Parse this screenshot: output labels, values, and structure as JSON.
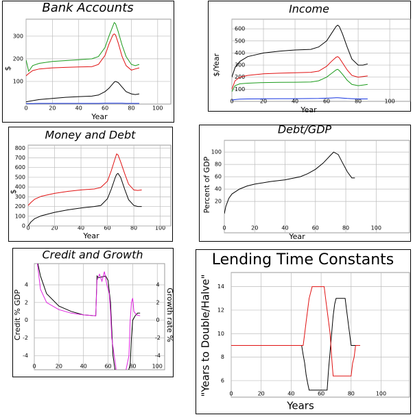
{
  "chart_data": [
    {
      "type": "line",
      "title": "Bank Accounts",
      "xlabel": "Year",
      "ylabel": "$",
      "x": [
        0,
        2,
        5,
        10,
        20,
        30,
        40,
        50,
        55,
        60,
        63,
        66,
        67,
        68,
        70,
        73,
        76,
        80,
        83,
        86
      ],
      "xlim": [
        0,
        110
      ],
      "ylim": [
        0,
        375
      ],
      "xticks": [
        0,
        20,
        40,
        60,
        80,
        100
      ],
      "yticks": [
        100,
        200,
        300
      ],
      "grid": true,
      "series": [
        {
          "color": "#1a9a1a",
          "values": [
            195,
            145,
            170,
            180,
            188,
            192,
            196,
            200,
            210,
            250,
            300,
            345,
            360,
            355,
            320,
            260,
            210,
            175,
            170,
            175
          ]
        },
        {
          "color": "#e01010",
          "values": [
            125,
            135,
            148,
            155,
            160,
            162,
            164,
            165,
            175,
            215,
            265,
            305,
            310,
            305,
            270,
            210,
            170,
            150,
            155,
            160
          ]
        },
        {
          "color": "#000000",
          "values": [
            10,
            12,
            15,
            20,
            25,
            30,
            33,
            35,
            40,
            55,
            70,
            90,
            97,
            100,
            95,
            75,
            55,
            45,
            42,
            45
          ]
        },
        {
          "color": "#1030e0",
          "values": [
            2,
            2,
            2,
            3,
            3,
            3,
            3,
            3,
            3,
            4,
            4,
            4,
            4,
            4,
            4,
            4,
            3,
            3,
            3,
            3
          ]
        }
      ]
    },
    {
      "type": "line",
      "title": "Income",
      "xlabel": "Year",
      "ylabel": "$/Year",
      "x": [
        0,
        2,
        5,
        10,
        20,
        30,
        40,
        50,
        55,
        60,
        63,
        66,
        67,
        68,
        70,
        73,
        76,
        80,
        83,
        86
      ],
      "xlim": [
        0,
        113
      ],
      "ylim": [
        0,
        680
      ],
      "xticks": [
        0,
        20,
        40,
        60,
        80,
        100
      ],
      "yticks": [
        100,
        200,
        300,
        400,
        500,
        600
      ],
      "grid": true,
      "series": [
        {
          "color": "#000000",
          "values": [
            200,
            280,
            330,
            370,
            400,
            415,
            425,
            430,
            450,
            500,
            560,
            620,
            630,
            620,
            560,
            450,
            350,
            300,
            300,
            310
          ]
        },
        {
          "color": "#e01010",
          "values": [
            100,
            170,
            200,
            215,
            228,
            233,
            237,
            240,
            250,
            290,
            330,
            365,
            370,
            360,
            320,
            260,
            215,
            200,
            205,
            210
          ]
        },
        {
          "color": "#1a9a1a",
          "values": [
            80,
            130,
            145,
            150,
            155,
            157,
            158,
            160,
            170,
            200,
            230,
            260,
            265,
            255,
            225,
            175,
            140,
            130,
            135,
            140
          ]
        },
        {
          "color": "#1030e0",
          "values": [
            10,
            15,
            18,
            20,
            21,
            22,
            22,
            23,
            24,
            26,
            28,
            30,
            30,
            29,
            27,
            24,
            22,
            20,
            20,
            20
          ]
        }
      ]
    },
    {
      "type": "line",
      "title": "Money and Debt",
      "xlabel": "Year",
      "ylabel": "$",
      "x": [
        0,
        2,
        5,
        10,
        20,
        30,
        40,
        50,
        55,
        60,
        63,
        66,
        67,
        68,
        70,
        73,
        76,
        80,
        83,
        86
      ],
      "xlim": [
        0,
        108
      ],
      "ylim": [
        0,
        830
      ],
      "xticks": [
        0,
        20,
        40,
        60,
        80,
        100
      ],
      "yticks": [
        0,
        100,
        200,
        300,
        400,
        500,
        600,
        700,
        800
      ],
      "grid": true,
      "series": [
        {
          "color": "#e01010",
          "values": [
            210,
            240,
            275,
            305,
            335,
            355,
            370,
            380,
            395,
            460,
            570,
            700,
            740,
            730,
            660,
            540,
            430,
            370,
            365,
            370
          ]
        },
        {
          "color": "#000000",
          "values": [
            0,
            40,
            75,
            105,
            140,
            165,
            185,
            200,
            210,
            280,
            380,
            500,
            530,
            540,
            500,
            380,
            270,
            210,
            200,
            200
          ]
        }
      ]
    },
    {
      "type": "line",
      "title": "Debt/GDP",
      "xlabel": "Year",
      "ylabel": "Percent of GDP",
      "x": [
        0,
        1,
        3,
        5,
        10,
        15,
        20,
        30,
        40,
        50,
        55,
        60,
        65,
        70,
        72,
        75,
        78,
        81,
        84,
        86
      ],
      "xlim": [
        0,
        122
      ],
      "ylim": [
        -31,
        119
      ],
      "xticks": [
        0,
        20,
        40,
        60,
        80,
        100
      ],
      "yticks": [
        20,
        40,
        60,
        80,
        100
      ],
      "grid": true,
      "series": [
        {
          "color": "#000000",
          "values": [
            0,
            12,
            25,
            32,
            40,
            45,
            48,
            52,
            55,
            60,
            65,
            72,
            82,
            95,
            100,
            96,
            82,
            68,
            58,
            58
          ]
        }
      ]
    },
    {
      "type": "line",
      "title": "Credit and Growth",
      "ylabel": "Credit % GDP",
      "y2label": "Growth rate %",
      "xlim": [
        0,
        106
      ],
      "ylim": [
        -5.6,
        6.4
      ],
      "y2lim": [
        -5.6,
        6.4
      ],
      "xticks": [
        0,
        20,
        40,
        60,
        80,
        100
      ],
      "yticks": [
        -4,
        -2,
        0,
        2,
        4
      ],
      "y2ticks": [
        -4,
        -2,
        0,
        2,
        4
      ],
      "grid": true,
      "series": [
        {
          "color": "#000000",
          "x": [
            2,
            5,
            10,
            20,
            30,
            40,
            50,
            51,
            52,
            55,
            58,
            60,
            62,
            63,
            64,
            65,
            66,
            68,
            70,
            74,
            76,
            78,
            79,
            80,
            82,
            84,
            86
          ],
          "values": [
            7,
            5,
            3,
            1.6,
            1,
            0.6,
            0.5,
            5,
            4.8,
            4.9,
            5,
            4.5,
            2,
            -1,
            -4,
            -5,
            -6,
            -6,
            -6,
            -6,
            -6,
            -5,
            -2,
            0,
            0.5,
            0.8,
            0.8
          ]
        },
        {
          "color": "#e020e0",
          "axis": "y2",
          "x": [
            2,
            5,
            10,
            20,
            30,
            40,
            50,
            51,
            53,
            55,
            57,
            59,
            61,
            62,
            63,
            64,
            65,
            66,
            67,
            70,
            74,
            77,
            78,
            79,
            80,
            81,
            83,
            86
          ],
          "values": [
            7,
            3.5,
            2,
            1.2,
            0.8,
            0.6,
            0.5,
            4.5,
            5.2,
            4.4,
            5.5,
            4,
            3,
            1,
            -2,
            -3,
            -4,
            -5,
            -6,
            -6,
            -6,
            -4,
            0,
            2,
            2.5,
            1,
            0.6,
            0.5
          ]
        }
      ]
    },
    {
      "type": "line",
      "title": "Lending Time Constants",
      "xlabel": "Years",
      "ylabel": "\"Years to Double/Halve\"",
      "xlim": [
        0,
        119
      ],
      "ylim": [
        4.6,
        15.2
      ],
      "xticks": [
        0,
        20,
        40,
        60,
        80,
        100
      ],
      "yticks": [
        6,
        8,
        10,
        12,
        14
      ],
      "grid": true,
      "series": [
        {
          "color": "#000000",
          "x": [
            0,
            47,
            48,
            49,
            50,
            51,
            52,
            64,
            65,
            66,
            67,
            68,
            69,
            70,
            76,
            77,
            78,
            79,
            80,
            86
          ],
          "values": [
            9,
            9,
            8.2,
            7.5,
            6.5,
            5.8,
            5.2,
            5.2,
            7,
            8.5,
            10,
            11.5,
            12.5,
            13,
            13,
            12,
            11,
            10,
            9,
            9
          ]
        },
        {
          "color": "#e01010",
          "x": [
            0,
            48,
            49,
            50,
            51,
            52,
            53,
            54,
            62,
            63,
            64,
            65,
            66,
            67,
            68,
            80,
            81,
            82,
            83,
            86
          ],
          "values": [
            9,
            9,
            10,
            11,
            12,
            13,
            13.5,
            14,
            14,
            13,
            12,
            11,
            10,
            8,
            6.4,
            6.4,
            7.5,
            8,
            9,
            9
          ]
        }
      ]
    }
  ]
}
